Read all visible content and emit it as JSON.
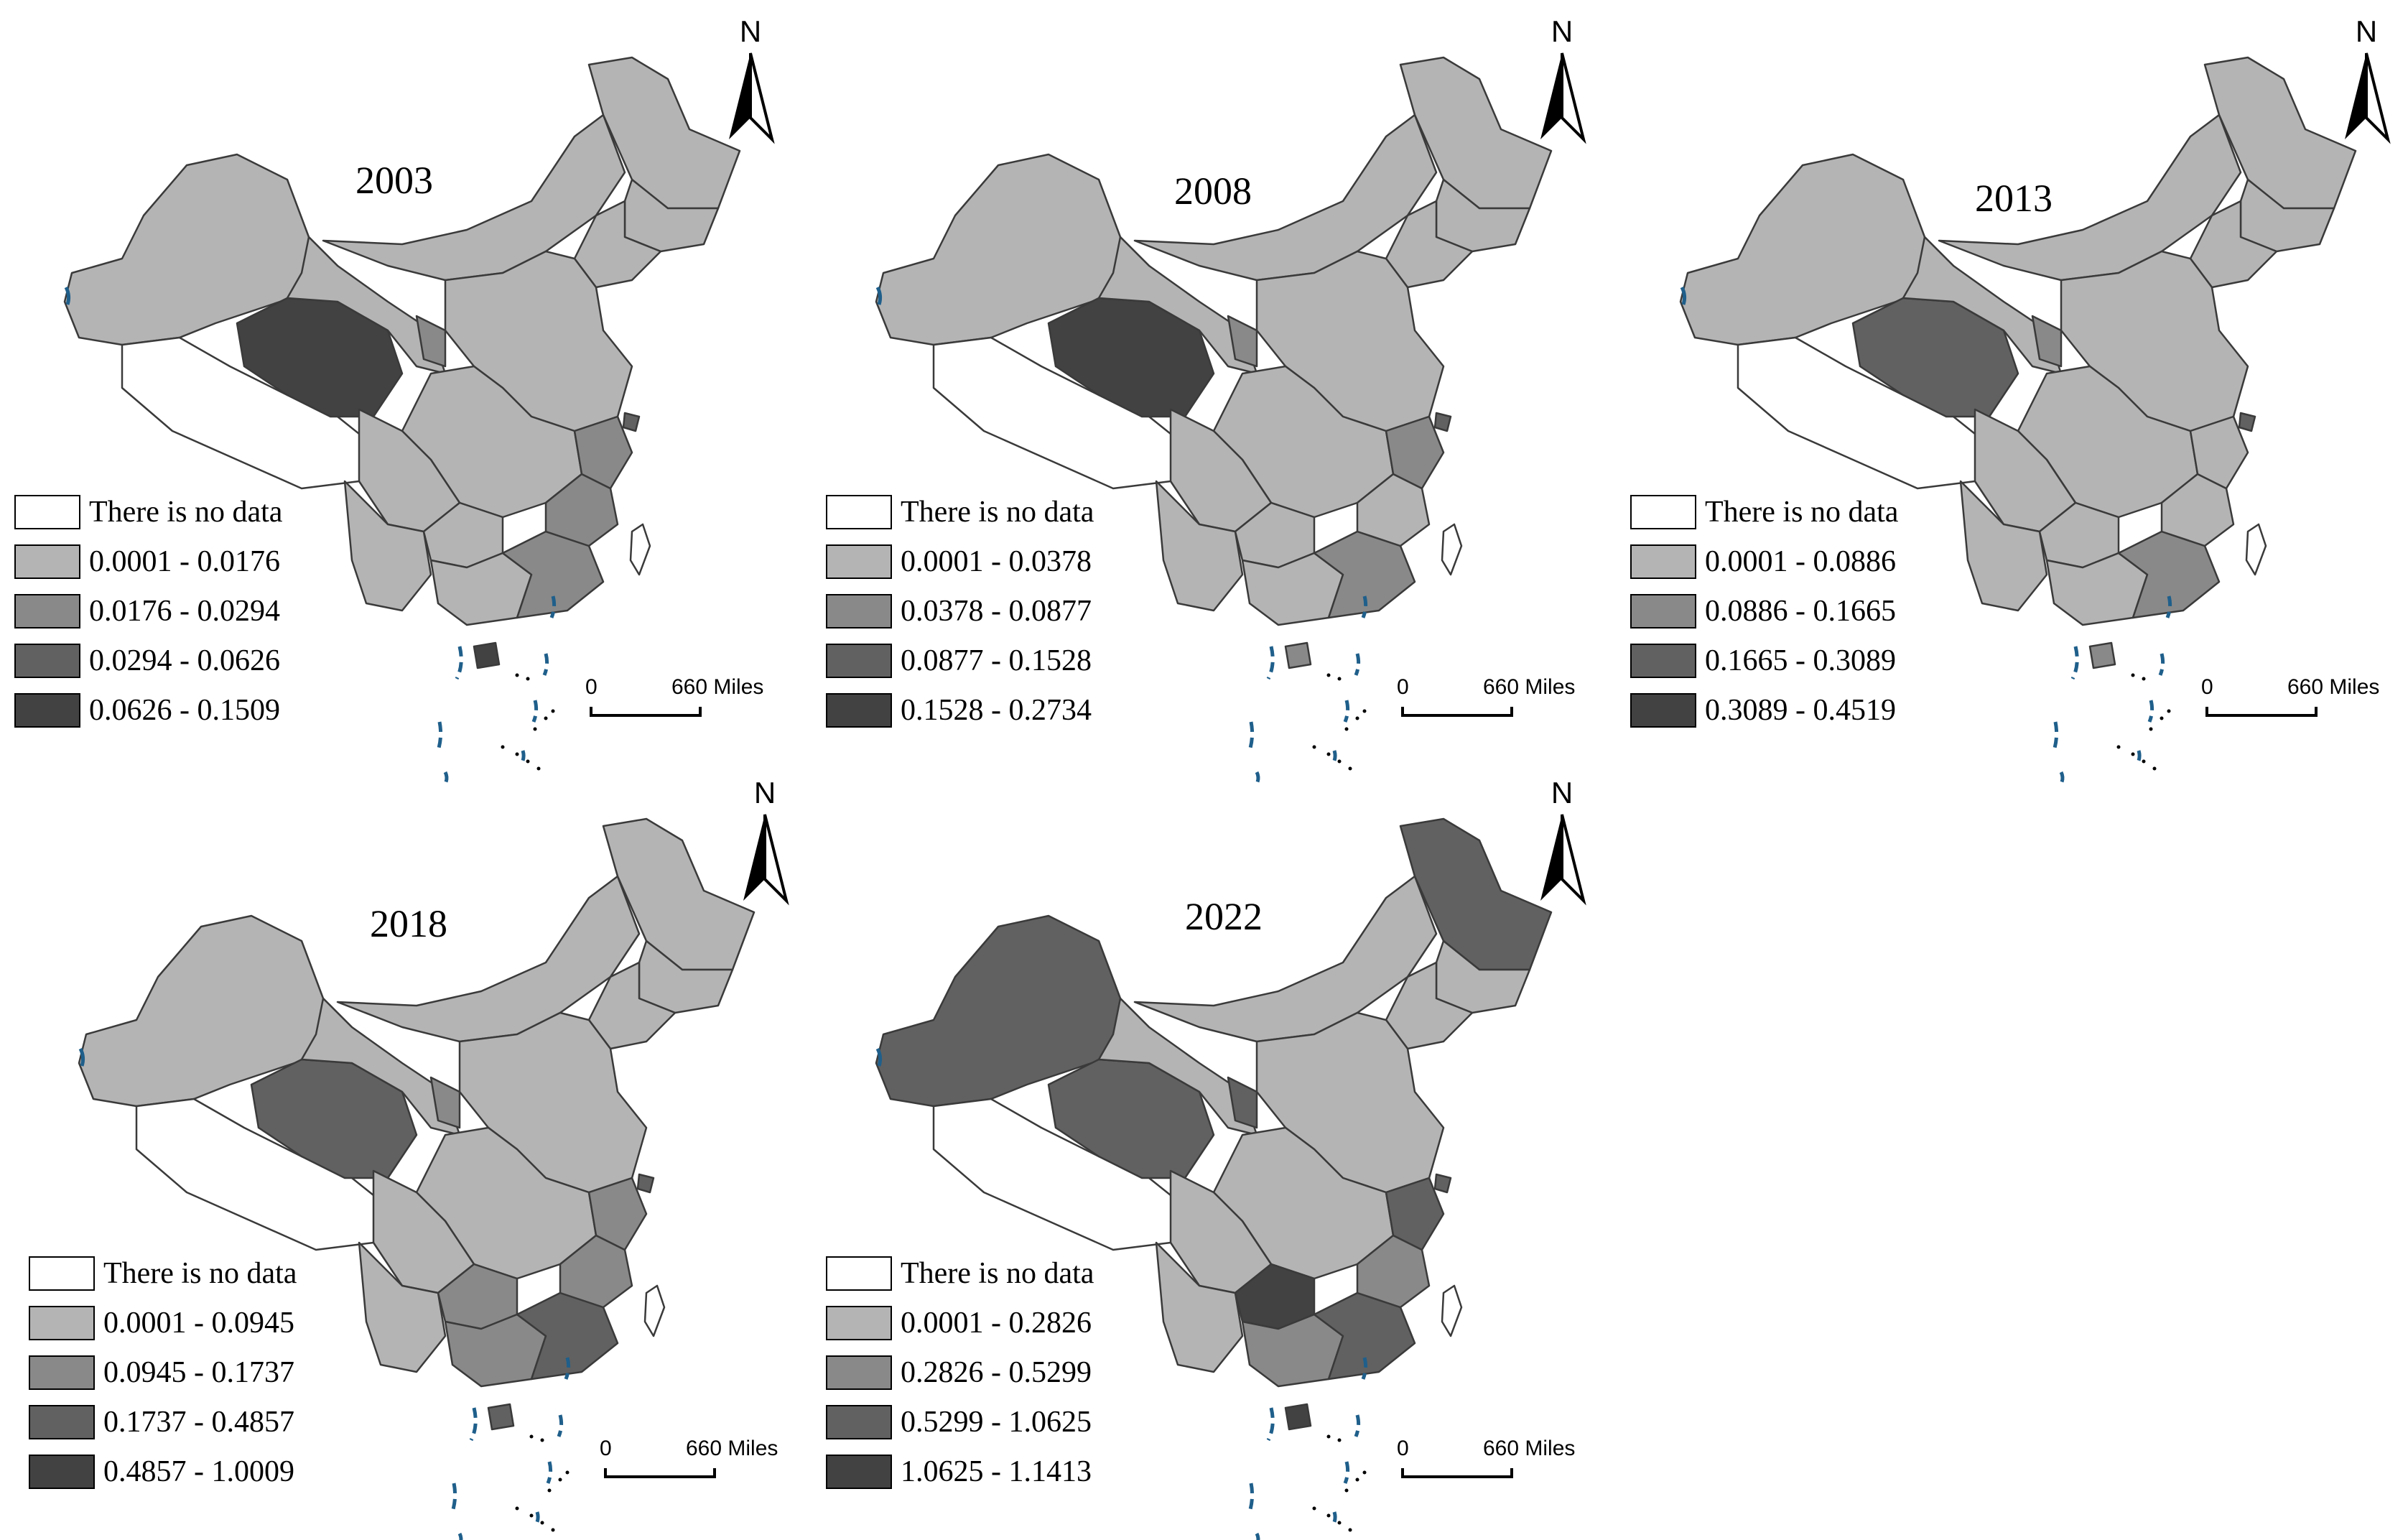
{
  "legend_title_nodata": "There is no data",
  "scale": {
    "zero": "0",
    "distance": "660 Miles"
  },
  "north_label": "N",
  "colors": {
    "nodata": "#ffffff",
    "class1": "#b4b4b4",
    "class2": "#898989",
    "class3": "#616161",
    "class4": "#424242",
    "border": "#3a3a3a",
    "coast_accent": "#1f5f8b"
  },
  "panels": [
    {
      "year": "2003",
      "classes": [
        "0.0001 - 0.0176",
        "0.0176 - 0.0294",
        "0.0294 - 0.0626",
        "0.0626 - 0.1509"
      ],
      "regions": {
        "xinjiang": 1,
        "tibet": 0,
        "qinghai": 4,
        "gansu": 1,
        "inner_mongolia": 1,
        "heilongjiang": 1,
        "jilin": 1,
        "liaoning": 1,
        "beijing": 4,
        "north_china": 1,
        "ningxia": 2,
        "central": 1,
        "sichuan": 1,
        "yunnan": 1,
        "guizhou": 1,
        "guangxi": 1,
        "guangdong": 2,
        "fujian": 2,
        "zhejiang": 2,
        "shanghai": 3,
        "hainan": 4,
        "taiwan": 0
      }
    },
    {
      "year": "2008",
      "classes": [
        "0.0001 - 0.0378",
        "0.0378 - 0.0877",
        "0.0877 - 0.1528",
        "0.1528 - 0.2734"
      ],
      "regions": {
        "xinjiang": 1,
        "tibet": 0,
        "qinghai": 4,
        "gansu": 1,
        "inner_mongolia": 1,
        "heilongjiang": 1,
        "jilin": 1,
        "liaoning": 1,
        "beijing": 3,
        "north_china": 1,
        "ningxia": 2,
        "central": 1,
        "sichuan": 1,
        "yunnan": 1,
        "guizhou": 1,
        "guangxi": 1,
        "guangdong": 2,
        "fujian": 1,
        "zhejiang": 2,
        "shanghai": 3,
        "hainan": 2,
        "taiwan": 0
      }
    },
    {
      "year": "2013",
      "classes": [
        "0.0001 - 0.0886",
        "0.0886 - 0.1665",
        "0.1665 - 0.3089",
        "0.3089 - 0.4519"
      ],
      "regions": {
        "xinjiang": 1,
        "tibet": 0,
        "qinghai": 3,
        "gansu": 1,
        "inner_mongolia": 1,
        "heilongjiang": 1,
        "jilin": 1,
        "liaoning": 1,
        "beijing": 3,
        "north_china": 1,
        "ningxia": 2,
        "central": 1,
        "sichuan": 1,
        "yunnan": 1,
        "guizhou": 1,
        "guangxi": 1,
        "guangdong": 2,
        "fujian": 1,
        "zhejiang": 1,
        "shanghai": 3,
        "hainan": 2,
        "taiwan": 0
      }
    },
    {
      "year": "2018",
      "classes": [
        "0.0001 - 0.0945",
        "0.0945 - 0.1737",
        "0.1737 - 0.4857",
        "0.4857 - 1.0009"
      ],
      "regions": {
        "xinjiang": 1,
        "tibet": 0,
        "qinghai": 3,
        "gansu": 1,
        "inner_mongolia": 1,
        "heilongjiang": 1,
        "jilin": 1,
        "liaoning": 1,
        "beijing": 4,
        "north_china": 1,
        "ningxia": 2,
        "central": 1,
        "sichuan": 1,
        "yunnan": 1,
        "guizhou": 2,
        "guangxi": 2,
        "guangdong": 3,
        "fujian": 2,
        "zhejiang": 2,
        "shanghai": 3,
        "hainan": 3,
        "taiwan": 0
      }
    },
    {
      "year": "2022",
      "classes": [
        "0.0001 - 0.2826",
        "0.2826 - 0.5299",
        "0.5299 - 1.0625",
        "1.0625 - 1.1413"
      ],
      "regions": {
        "xinjiang": 3,
        "tibet": 0,
        "qinghai": 3,
        "gansu": 1,
        "inner_mongolia": 1,
        "heilongjiang": 3,
        "jilin": 1,
        "liaoning": 1,
        "beijing": 3,
        "north_china": 1,
        "ningxia": 3,
        "central": 1,
        "sichuan": 1,
        "yunnan": 1,
        "guizhou": 4,
        "guangxi": 2,
        "guangdong": 3,
        "fujian": 2,
        "zhejiang": 3,
        "shanghai": 3,
        "hainan": 4,
        "taiwan": 0
      }
    }
  ]
}
